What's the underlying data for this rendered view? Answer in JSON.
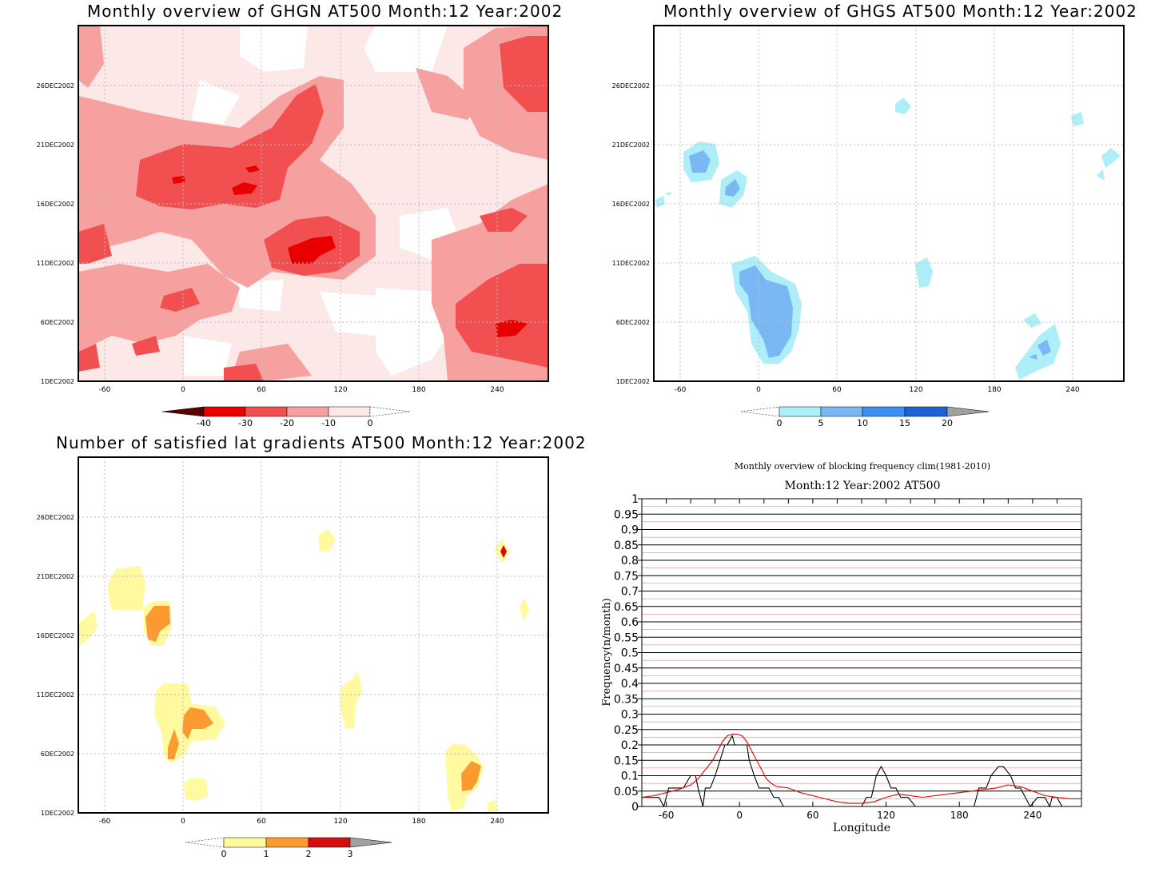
{
  "chart_data": [
    {
      "type": "heatmap",
      "title": "Monthly overview of GHGN AT500 Month:12 Year:2002",
      "xlim": [
        -75,
        285
      ],
      "x_ticks": [
        "-60",
        "0",
        "60",
        "120",
        "180",
        "240"
      ],
      "x_tick_values": [
        -60,
        0,
        60,
        120,
        180,
        240
      ],
      "ylim": [
        1,
        31
      ],
      "y_ticks": [
        "1DEC2002",
        "6DEC2002",
        "11DEC2002",
        "16DEC2002",
        "21DEC2002",
        "26DEC2002"
      ],
      "y_tick_values": [
        1,
        6,
        11,
        16,
        21,
        26
      ],
      "grid": true,
      "colorbar": {
        "labels": [
          "-40",
          "-30",
          "-20",
          "-10",
          "0"
        ],
        "colors": [
          "#5a0000",
          "#e80000",
          "#f25050",
          "#f7a0a0",
          "#fde8e8"
        ]
      }
    },
    {
      "type": "heatmap",
      "title": "Monthly overview of GHGS AT500 Month:12 Year:2002",
      "xlim": [
        -75,
        285
      ],
      "x_ticks": [
        "-60",
        "0",
        "60",
        "120",
        "180",
        "240"
      ],
      "x_tick_values": [
        -60,
        0,
        60,
        120,
        180,
        240
      ],
      "ylim": [
        1,
        31
      ],
      "y_ticks": [
        "1DEC2002",
        "6DEC2002",
        "11DEC2002",
        "16DEC2002",
        "21DEC2002",
        "26DEC2002"
      ],
      "y_tick_values": [
        1,
        6,
        11,
        16,
        21,
        26
      ],
      "grid": true,
      "colorbar": {
        "labels": [
          "0",
          "5",
          "10",
          "15",
          "20"
        ],
        "colors": [
          "#aeeef8",
          "#7ab8f5",
          "#3c8ff0",
          "#1a62d6",
          "#a0a0a0"
        ]
      }
    },
    {
      "type": "heatmap",
      "title": "Number of satisfied lat gradients AT500 Month:12 Year:2002",
      "xlim": [
        -75,
        285
      ],
      "x_ticks": [
        "-60",
        "0",
        "60",
        "120",
        "180",
        "240"
      ],
      "x_tick_values": [
        -60,
        0,
        60,
        120,
        180,
        240
      ],
      "ylim": [
        1,
        31
      ],
      "y_ticks": [
        "1DEC2002",
        "6DEC2002",
        "11DEC2002",
        "16DEC2002",
        "21DEC2002",
        "26DEC2002"
      ],
      "y_tick_values": [
        1,
        6,
        11,
        16,
        21,
        26
      ],
      "grid": true,
      "colorbar": {
        "labels": [
          "0",
          "1",
          "2",
          "3"
        ],
        "colors": [
          "#fff9a0",
          "#fa9a30",
          "#d01010",
          "#a0a0a0"
        ]
      }
    },
    {
      "type": "line",
      "title": "Monthly overview of blocking frequency clim(1981-2010)",
      "subtitle": "Month:12 Year:2002  AT500",
      "xlabel": "Longitude",
      "ylabel": "Frequency(n/month)",
      "xlim": [
        -80,
        280
      ],
      "ylim": [
        0,
        1
      ],
      "x_ticks": [
        "-60",
        "0",
        "60",
        "120",
        "180",
        "240"
      ],
      "x_tick_values": [
        -60,
        0,
        60,
        120,
        180,
        240
      ],
      "y_ticks": [
        "0",
        "0.05",
        "0.1",
        "0.15",
        "0.2",
        "0.25",
        "0.3",
        "0.35",
        "0.4",
        "0.45",
        "0.5",
        "0.55",
        "0.6",
        "0.65",
        "0.7",
        "0.75",
        "0.8",
        "0.85",
        "0.9",
        "0.95",
        "1"
      ],
      "grid": true,
      "series": [
        {
          "color": "#000000",
          "x": [
            -80,
            -66,
            -62,
            -58,
            -46,
            -40,
            -36,
            -34,
            -30,
            -28,
            -24,
            -20,
            -16,
            -12,
            -10,
            -6,
            -4,
            0,
            2,
            6,
            8,
            12,
            16,
            20,
            24,
            28,
            32,
            36,
            100,
            104,
            108,
            112,
            116,
            120,
            124,
            128,
            132,
            138,
            144,
            160,
            192,
            196,
            202,
            206,
            212,
            216,
            222,
            226,
            230,
            238,
            244,
            250,
            254,
            256,
            260,
            264
          ],
          "y": [
            0.03,
            0.03,
            0.0,
            0.06,
            0.06,
            0.1,
            0.1,
            0.06,
            0.0,
            0.06,
            0.06,
            0.1,
            0.15,
            0.2,
            0.2,
            0.23,
            0.2,
            0.2,
            0.2,
            0.2,
            0.15,
            0.1,
            0.06,
            0.06,
            0.06,
            0.03,
            0.03,
            0.0,
            0.0,
            0.03,
            0.03,
            0.1,
            0.13,
            0.1,
            0.06,
            0.06,
            0.03,
            0.03,
            0.0,
            0.0,
            0.0,
            0.06,
            0.06,
            0.1,
            0.13,
            0.13,
            0.1,
            0.06,
            0.06,
            0.0,
            0.03,
            0.03,
            0.0,
            0.03,
            0.03,
            0.0
          ]
        },
        {
          "color": "#e00000",
          "x": [
            -80,
            -70,
            -60,
            -50,
            -40,
            -34,
            -30,
            -26,
            -22,
            -18,
            -14,
            -10,
            -6,
            -2,
            2,
            6,
            10,
            14,
            18,
            22,
            26,
            30,
            40,
            50,
            60,
            70,
            80,
            90,
            100,
            110,
            120,
            130,
            140,
            150,
            160,
            170,
            180,
            190,
            200,
            210,
            220,
            230,
            240,
            250,
            260,
            270,
            280
          ],
          "y": [
            0.03,
            0.035,
            0.045,
            0.055,
            0.07,
            0.09,
            0.11,
            0.13,
            0.15,
            0.18,
            0.21,
            0.23,
            0.235,
            0.235,
            0.23,
            0.21,
            0.18,
            0.15,
            0.12,
            0.09,
            0.075,
            0.065,
            0.06,
            0.045,
            0.035,
            0.025,
            0.015,
            0.01,
            0.01,
            0.015,
            0.03,
            0.04,
            0.035,
            0.03,
            0.035,
            0.04,
            0.045,
            0.05,
            0.055,
            0.06,
            0.07,
            0.065,
            0.05,
            0.035,
            0.03,
            0.025,
            0.025
          ]
        }
      ]
    }
  ]
}
